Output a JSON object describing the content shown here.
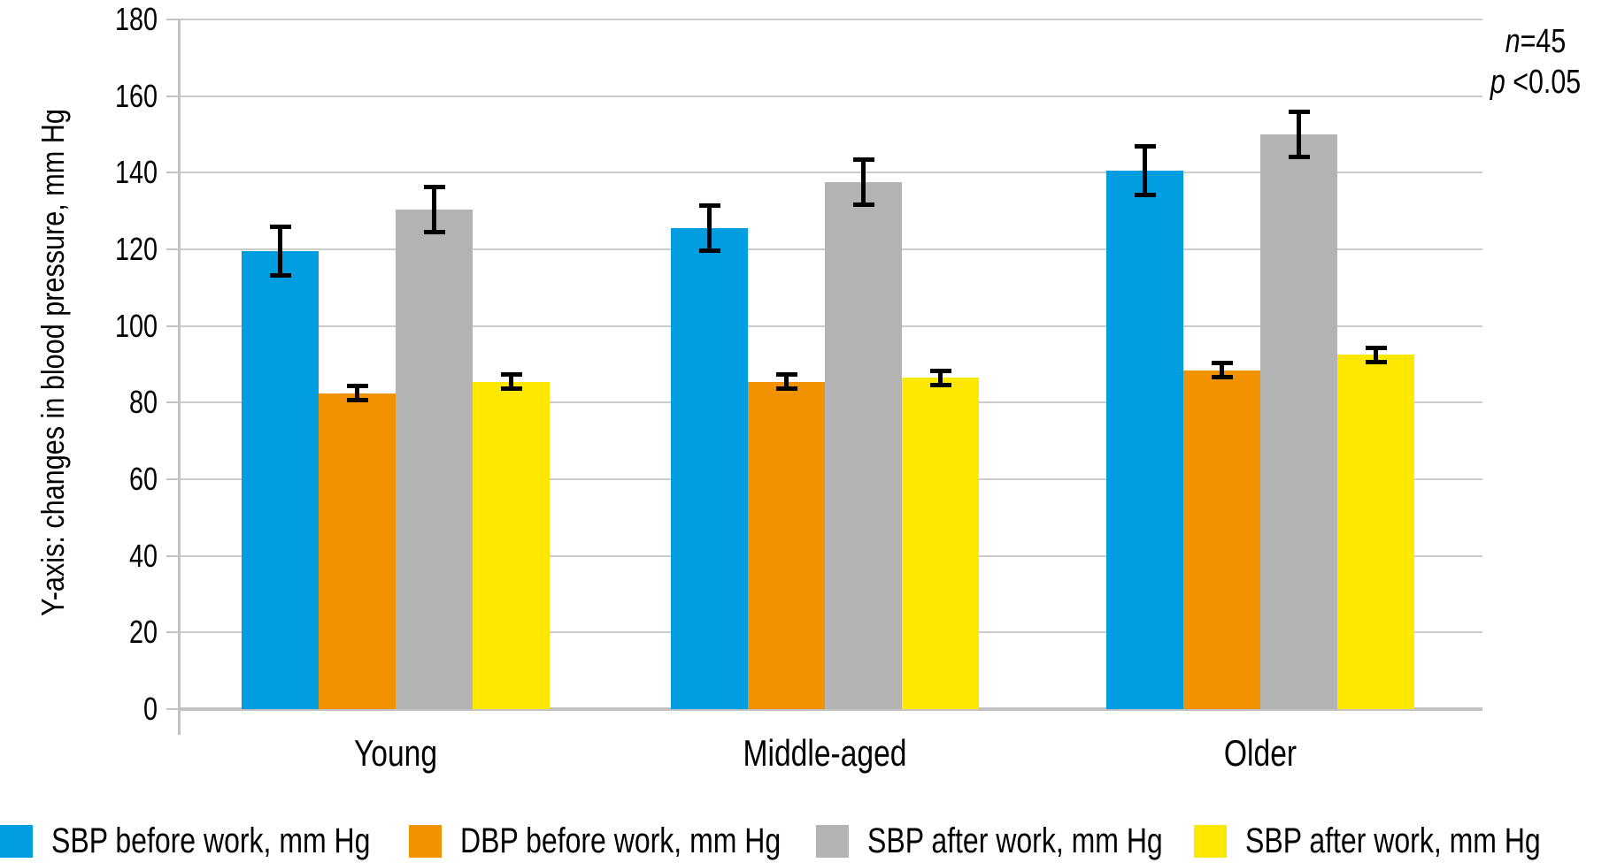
{
  "chart_data": {
    "type": "bar",
    "title": "",
    "categories": [
      "Young",
      "Middle-aged",
      "Older"
    ],
    "series": [
      {
        "name": "SBP before work, mm Hg",
        "color": "#009ee0",
        "values": [
          119.5,
          125.5,
          140.5
        ],
        "errors": [
          6.5,
          6,
          6.5
        ]
      },
      {
        "name": "DBP before work, mm Hg",
        "color": "#f39200",
        "values": [
          82.5,
          85.5,
          88.5
        ],
        "errors": [
          2,
          2,
          2
        ]
      },
      {
        "name": "SBP after work, mm Hg",
        "color": "#b3b3b3",
        "values": [
          130.5,
          137.5,
          150
        ],
        "errors": [
          6,
          6,
          6
        ]
      },
      {
        "name": "SBP after work, mm Hg",
        "color": "#ffe800",
        "values": [
          85.5,
          86.5,
          92.5
        ],
        "errors": [
          2,
          2,
          2
        ]
      }
    ],
    "xlabel": "",
    "ylabel": "Y-axis: changes in blood pressure, mm Hg",
    "ylim": [
      0,
      180
    ],
    "ytick_step": 20,
    "grid": true,
    "legend_position": "bottom",
    "error_bar_color": "#000000",
    "gridline_color": "#cbcbcb",
    "axis_color": "#c2c2c2",
    "annotations": [
      {
        "italic": "n",
        "text": "=45"
      },
      {
        "italic": "p",
        "text": " <0.05"
      }
    ]
  }
}
